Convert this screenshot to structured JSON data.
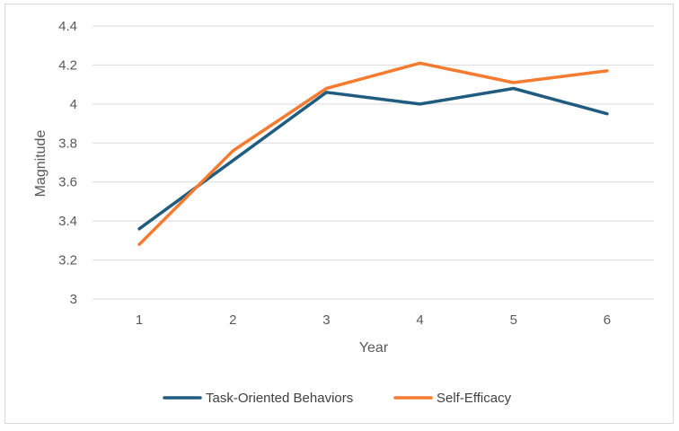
{
  "chart_data": {
    "type": "line",
    "title": "",
    "xlabel": "Year",
    "ylabel": "Magnitude",
    "categories": [
      "1",
      "2",
      "3",
      "4",
      "5",
      "6"
    ],
    "yticks": [
      "3",
      "3.2",
      "3.4",
      "3.6",
      "3.8",
      "4",
      "4.2",
      "4.4"
    ],
    "ylim": [
      3,
      4.4
    ],
    "grid": true,
    "legend_position": "bottom",
    "series": [
      {
        "name": "Task-Oriented Behaviors",
        "color": "#1F5C7F",
        "values": [
          3.36,
          3.71,
          4.06,
          4.0,
          4.08,
          3.95
        ]
      },
      {
        "name": "Self-Efficacy",
        "color": "#F47B30",
        "values": [
          3.28,
          3.76,
          4.08,
          4.21,
          4.11,
          4.17
        ]
      }
    ]
  }
}
